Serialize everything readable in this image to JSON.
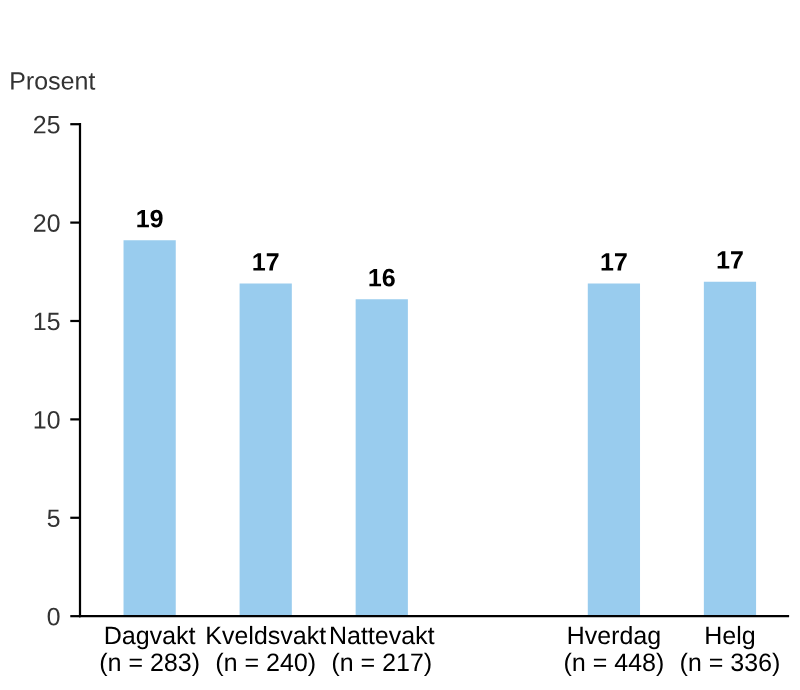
{
  "chart_data": {
    "type": "bar",
    "ylabel": "Prosent",
    "categories": [
      "Dagvakt\n(n = 283)",
      "Kveldsvakt\n(n = 240)",
      "Nattevakt\n(n = 217)",
      null,
      "Hverdag\n(n = 448)",
      "Helg\n(n = 336)"
    ],
    "values": [
      19.1,
      16.9,
      16.1,
      null,
      16.9,
      17.0
    ],
    "value_labels": [
      "19",
      "17",
      "16",
      null,
      "17",
      "17"
    ],
    "color": "#99ccee",
    "ylim": [
      0,
      25
    ],
    "yticks": [
      0,
      5,
      10,
      15,
      20,
      25
    ],
    "grid": false,
    "legend": false
  }
}
